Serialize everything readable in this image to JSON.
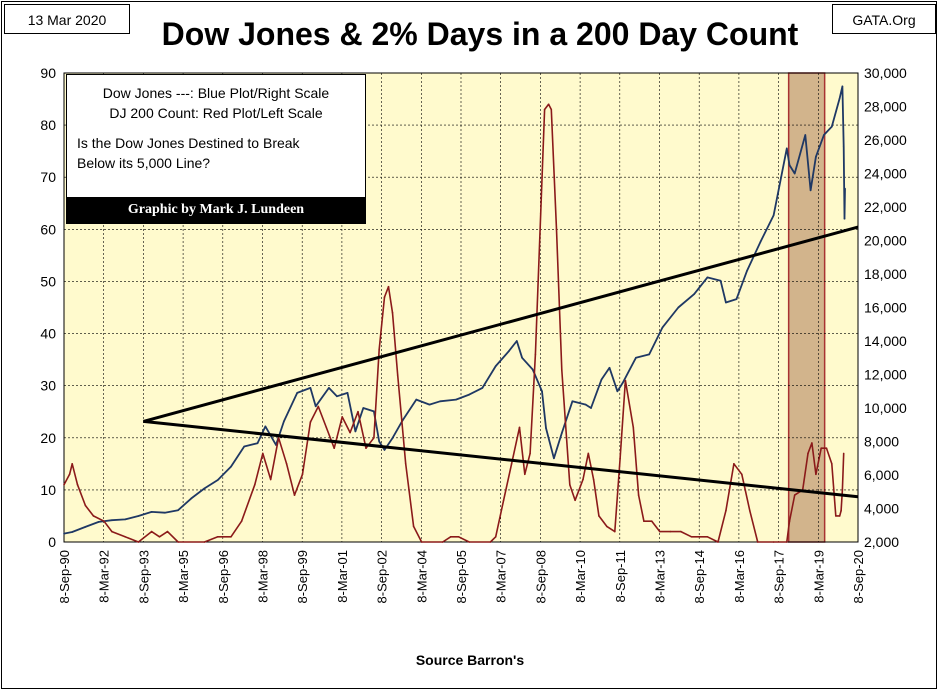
{
  "header": {
    "date": "13 Mar 2020",
    "site": "GATA.Org",
    "title": "Dow Jones & 2% Days in a 200 Day Count"
  },
  "legend": {
    "line1": "Dow Jones ---: Blue Plot/Right Scale",
    "line2": "DJ 200 Count: Red Plot/Left Scale",
    "question_line1": "Is the Dow Jones Destined to Break",
    "question_line2": "Below its 5,000 Line?",
    "credit": "Graphic by Mark J. Lundeen"
  },
  "footer": {
    "source": "Source Barron's"
  },
  "colors": {
    "background": "#fffacd",
    "dow_line": "#1f3864",
    "count_line": "#8b1a1a",
    "band_fill": "#d2b48c",
    "band_edge": "#a83232",
    "trendline": "#000000",
    "grid": "#000000"
  },
  "chart_data": {
    "type": "line",
    "title": "Dow Jones & 2% Days in a 200 Day Count",
    "left_axis": {
      "ylim": [
        0,
        90
      ],
      "ticks": [
        0,
        10,
        20,
        30,
        40,
        50,
        60,
        70,
        80,
        90
      ]
    },
    "right_axis": {
      "ylim": [
        2000,
        30000
      ],
      "ticks": [
        2000,
        4000,
        6000,
        8000,
        10000,
        12000,
        14000,
        16000,
        18000,
        20000,
        22000,
        24000,
        26000,
        28000,
        30000
      ],
      "tick_labels": [
        "2,000",
        "4,000",
        "6,000",
        "8,000",
        "10,000",
        "12,000",
        "14,000",
        "16,000",
        "18,000",
        "20,000",
        "22,000",
        "24,000",
        "26,000",
        "28,000",
        "30,000"
      ]
    },
    "x_range": [
      1990.69,
      2020.69
    ],
    "x_tick_labels": [
      "8-Sep-90",
      "8-Mar-92",
      "8-Sep-93",
      "8-Mar-95",
      "8-Sep-96",
      "8-Mar-98",
      "8-Sep-99",
      "8-Mar-01",
      "8-Sep-02",
      "8-Mar-04",
      "8-Sep-05",
      "8-Mar-07",
      "8-Sep-08",
      "8-Mar-10",
      "8-Sep-11",
      "8-Mar-13",
      "8-Sep-14",
      "8-Mar-16",
      "8-Sep-17",
      "8-Mar-19",
      "8-Sep-20"
    ],
    "x_tick_years": [
      1990.69,
      1992.19,
      1993.69,
      1995.19,
      1996.69,
      1998.19,
      1999.69,
      2001.19,
      2002.69,
      2004.19,
      2005.69,
      2007.19,
      2008.69,
      2010.19,
      2011.69,
      2013.19,
      2014.69,
      2016.19,
      2017.69,
      2019.19,
      2020.69
    ],
    "grid": true,
    "legend_position": "top-left",
    "shaded_band": {
      "x_start": 2018.07,
      "x_end": 2019.43
    },
    "series": [
      {
        "name": "Dow Jones",
        "axis": "right",
        "points": [
          [
            1990.69,
            2500
          ],
          [
            1991.0,
            2600
          ],
          [
            1991.5,
            2900
          ],
          [
            1992.0,
            3200
          ],
          [
            1992.5,
            3300
          ],
          [
            1993.0,
            3350
          ],
          [
            1993.5,
            3550
          ],
          [
            1994.0,
            3800
          ],
          [
            1994.5,
            3750
          ],
          [
            1995.0,
            3900
          ],
          [
            1995.5,
            4600
          ],
          [
            1996.0,
            5200
          ],
          [
            1996.5,
            5700
          ],
          [
            1997.0,
            6500
          ],
          [
            1997.5,
            7700
          ],
          [
            1998.0,
            7900
          ],
          [
            1998.3,
            8900
          ],
          [
            1998.7,
            7800
          ],
          [
            1999.0,
            9200
          ],
          [
            1999.5,
            10900
          ],
          [
            2000.0,
            11200
          ],
          [
            2000.2,
            10100
          ],
          [
            2000.7,
            11200
          ],
          [
            2001.0,
            10700
          ],
          [
            2001.4,
            10900
          ],
          [
            2001.7,
            8600
          ],
          [
            2002.0,
            10000
          ],
          [
            2002.4,
            9800
          ],
          [
            2002.6,
            8000
          ],
          [
            2002.8,
            7500
          ],
          [
            2003.1,
            8200
          ],
          [
            2003.5,
            9300
          ],
          [
            2004.0,
            10500
          ],
          [
            2004.5,
            10200
          ],
          [
            2004.9,
            10400
          ],
          [
            2005.5,
            10500
          ],
          [
            2006.0,
            10800
          ],
          [
            2006.5,
            11200
          ],
          [
            2007.0,
            12500
          ],
          [
            2007.5,
            13400
          ],
          [
            2007.8,
            14000
          ],
          [
            2008.0,
            13000
          ],
          [
            2008.4,
            12300
          ],
          [
            2008.75,
            11000
          ],
          [
            2008.9,
            8800
          ],
          [
            2009.2,
            7000
          ],
          [
            2009.5,
            8500
          ],
          [
            2009.9,
            10400
          ],
          [
            2010.4,
            10200
          ],
          [
            2010.6,
            10000
          ],
          [
            2011.0,
            11700
          ],
          [
            2011.3,
            12400
          ],
          [
            2011.6,
            11000
          ],
          [
            2011.8,
            11500
          ],
          [
            2012.3,
            13000
          ],
          [
            2012.8,
            13200
          ],
          [
            2013.3,
            14800
          ],
          [
            2013.9,
            16000
          ],
          [
            2014.5,
            16800
          ],
          [
            2015.0,
            17800
          ],
          [
            2015.5,
            17600
          ],
          [
            2015.7,
            16300
          ],
          [
            2016.1,
            16500
          ],
          [
            2016.5,
            18200
          ],
          [
            2017.0,
            19900
          ],
          [
            2017.5,
            21500
          ],
          [
            2018.0,
            25500
          ],
          [
            2018.1,
            24500
          ],
          [
            2018.3,
            24000
          ],
          [
            2018.7,
            26300
          ],
          [
            2018.9,
            23000
          ],
          [
            2019.1,
            25000
          ],
          [
            2019.4,
            26300
          ],
          [
            2019.7,
            26800
          ],
          [
            2020.0,
            28500
          ],
          [
            2020.1,
            29200
          ],
          [
            2020.15,
            25600
          ],
          [
            2020.18,
            21300
          ],
          [
            2020.2,
            23100
          ]
        ]
      },
      {
        "name": "DJ 200 Count",
        "axis": "left",
        "points": [
          [
            1990.69,
            11
          ],
          [
            1990.9,
            13
          ],
          [
            1991.0,
            15
          ],
          [
            1991.2,
            11
          ],
          [
            1991.5,
            7
          ],
          [
            1991.8,
            5
          ],
          [
            1992.2,
            4
          ],
          [
            1992.5,
            2
          ],
          [
            1993.0,
            1
          ],
          [
            1993.5,
            0
          ],
          [
            1994.0,
            2
          ],
          [
            1994.3,
            1
          ],
          [
            1994.6,
            2
          ],
          [
            1995.0,
            0
          ],
          [
            1996.0,
            0
          ],
          [
            1996.5,
            1
          ],
          [
            1997.0,
            1
          ],
          [
            1997.4,
            4
          ],
          [
            1997.9,
            11
          ],
          [
            1998.2,
            17
          ],
          [
            1998.5,
            12
          ],
          [
            1998.8,
            20
          ],
          [
            1999.1,
            15
          ],
          [
            1999.4,
            9
          ],
          [
            1999.7,
            13
          ],
          [
            2000.0,
            23
          ],
          [
            2000.3,
            26
          ],
          [
            2000.6,
            22
          ],
          [
            2000.9,
            18
          ],
          [
            2001.2,
            24
          ],
          [
            2001.5,
            21
          ],
          [
            2001.8,
            25
          ],
          [
            2002.1,
            18
          ],
          [
            2002.4,
            20
          ],
          [
            2002.6,
            37
          ],
          [
            2002.8,
            47
          ],
          [
            2002.95,
            49
          ],
          [
            2003.1,
            44
          ],
          [
            2003.3,
            32
          ],
          [
            2003.6,
            15
          ],
          [
            2003.9,
            3
          ],
          [
            2004.2,
            0
          ],
          [
            2005.0,
            0
          ],
          [
            2005.3,
            1
          ],
          [
            2005.6,
            1
          ],
          [
            2006.0,
            0
          ],
          [
            2006.8,
            0
          ],
          [
            2007.0,
            1
          ],
          [
            2007.3,
            8
          ],
          [
            2007.6,
            15
          ],
          [
            2007.9,
            22
          ],
          [
            2008.1,
            13
          ],
          [
            2008.3,
            17
          ],
          [
            2008.5,
            36
          ],
          [
            2008.7,
            63
          ],
          [
            2008.85,
            83
          ],
          [
            2009.0,
            84
          ],
          [
            2009.1,
            83
          ],
          [
            2009.3,
            60
          ],
          [
            2009.5,
            33
          ],
          [
            2009.8,
            11
          ],
          [
            2010.0,
            8
          ],
          [
            2010.3,
            12
          ],
          [
            2010.5,
            17
          ],
          [
            2010.7,
            12
          ],
          [
            2010.9,
            5
          ],
          [
            2011.2,
            3
          ],
          [
            2011.5,
            2
          ],
          [
            2011.7,
            16
          ],
          [
            2011.9,
            31
          ],
          [
            2012.2,
            22
          ],
          [
            2012.4,
            9
          ],
          [
            2012.6,
            4
          ],
          [
            2012.9,
            4
          ],
          [
            2013.2,
            2
          ],
          [
            2013.6,
            2
          ],
          [
            2014.0,
            2
          ],
          [
            2014.4,
            1
          ],
          [
            2014.7,
            1
          ],
          [
            2015.0,
            1
          ],
          [
            2015.4,
            0
          ],
          [
            2015.7,
            6
          ],
          [
            2016.0,
            15
          ],
          [
            2016.3,
            13
          ],
          [
            2016.6,
            6
          ],
          [
            2016.9,
            0
          ],
          [
            2017.5,
            0
          ],
          [
            2018.0,
            0
          ],
          [
            2018.1,
            4
          ],
          [
            2018.3,
            9
          ],
          [
            2018.6,
            10
          ],
          [
            2018.8,
            17
          ],
          [
            2018.95,
            19
          ],
          [
            2019.1,
            13
          ],
          [
            2019.3,
            18
          ],
          [
            2019.5,
            18
          ],
          [
            2019.7,
            15
          ],
          [
            2019.85,
            5
          ],
          [
            2020.0,
            5
          ],
          [
            2020.05,
            6
          ],
          [
            2020.1,
            10
          ],
          [
            2020.15,
            17
          ]
        ]
      }
    ],
    "trendlines": [
      {
        "axis": "right",
        "points": [
          [
            1993.69,
            9200
          ],
          [
            2020.69,
            20800
          ]
        ]
      },
      {
        "axis": "right",
        "points": [
          [
            1993.69,
            9200
          ],
          [
            2020.69,
            4700
          ]
        ]
      }
    ]
  }
}
